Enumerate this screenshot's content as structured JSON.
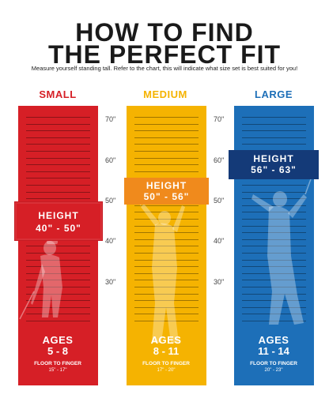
{
  "header": {
    "title_line1": "HOW TO FIND",
    "title_line2": "THE PERFECT FIT",
    "subtitle": "Measure yourself standing tall.  Refer to the chart, this will indicate what size set is best suited for you!"
  },
  "colors": {
    "small": "#d61f26",
    "medium": "#f5b301",
    "large": "#1d6fb8",
    "large_badge": "#143a78",
    "medium_badge": "#f08a1c"
  },
  "axis_labels": [
    "70\"",
    "60\"",
    "50\"",
    "40\"",
    "30\""
  ],
  "sizes": [
    {
      "label": "SMALL",
      "height_title": "HEIGHT",
      "height_range": "40\" - 50\"",
      "ages_title": "AGES",
      "ages_range": "5 - 8",
      "floor_to_finger": "FLOOR TO FINGER",
      "floor_to_finger_value": "15\" - 17\""
    },
    {
      "label": "MEDIUM",
      "height_title": "HEIGHT",
      "height_range": "50\" - 56\"",
      "ages_title": "AGES",
      "ages_range": "8 - 11",
      "floor_to_finger": "FLOOR TO FINGER",
      "floor_to_finger_value": "17\" - 20\""
    },
    {
      "label": "LARGE",
      "height_title": "HEIGHT",
      "height_range": "56\" - 63\"",
      "ages_title": "AGES",
      "ages_range": "11 - 14",
      "floor_to_finger": "FLOOR TO FINGER",
      "floor_to_finger_value": "20\" - 23\""
    }
  ]
}
